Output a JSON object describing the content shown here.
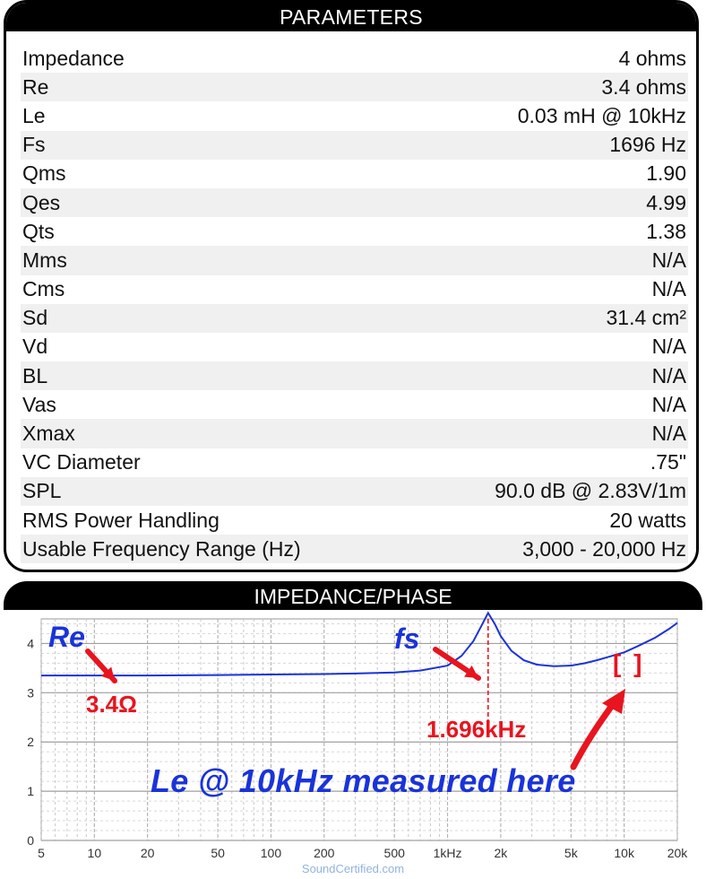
{
  "parameters": {
    "title": "PARAMETERS",
    "rows": [
      {
        "label": "Impedance",
        "value": "4 ohms"
      },
      {
        "label": "Re",
        "value": "3.4 ohms"
      },
      {
        "label": "Le",
        "value": "0.03 mH @ 10kHz"
      },
      {
        "label": "Fs",
        "value": "1696 Hz"
      },
      {
        "label": "Qms",
        "value": "1.90"
      },
      {
        "label": "Qes",
        "value": "4.99"
      },
      {
        "label": "Qts",
        "value": "1.38"
      },
      {
        "label": "Mms",
        "value": "N/A"
      },
      {
        "label": "Cms",
        "value": "N/A"
      },
      {
        "label": "Sd",
        "value": "31.4 cm²"
      },
      {
        "label": "Vd",
        "value": "N/A"
      },
      {
        "label": "BL",
        "value": "N/A"
      },
      {
        "label": "Vas",
        "value": "N/A"
      },
      {
        "label": "Xmax",
        "value": "N/A"
      },
      {
        "label": "VC Diameter",
        "value": ".75\""
      },
      {
        "label": "SPL",
        "value": "90.0 dB @ 2.83V/1m"
      },
      {
        "label": "RMS Power Handling",
        "value": "20 watts"
      },
      {
        "label": "Usable Frequency Range (Hz)",
        "value": "3,000 - 20,000 Hz"
      }
    ]
  },
  "impedance": {
    "title": "IMPEDANCE/PHASE",
    "annotations": {
      "re": "Re",
      "re_value": "3.4Ω",
      "fs": "fs",
      "fs_value": "1.696kHz",
      "le_note": "Le @ 10kHz measured here",
      "le_marker": "[ ]"
    }
  },
  "chart_data": {
    "type": "line",
    "x_scale": "log",
    "xlim": [
      5,
      20000
    ],
    "ylim": [
      0,
      4.5
    ],
    "x_ticks": [
      {
        "value": 5,
        "label": "5"
      },
      {
        "value": 10,
        "label": "10"
      },
      {
        "value": 20,
        "label": "20"
      },
      {
        "value": 50,
        "label": "50"
      },
      {
        "value": 100,
        "label": "100"
      },
      {
        "value": 200,
        "label": "200"
      },
      {
        "value": 500,
        "label": "500"
      },
      {
        "value": 1000,
        "label": "1kHz"
      },
      {
        "value": 2000,
        "label": "2k"
      },
      {
        "value": 5000,
        "label": "5k"
      },
      {
        "value": 10000,
        "label": "10k"
      },
      {
        "value": 20000,
        "label": "20k"
      }
    ],
    "y_ticks": [
      0,
      1,
      2,
      3,
      4
    ],
    "grid": true,
    "series": [
      {
        "color": "#1a33d9",
        "x": [
          5,
          10,
          20,
          50,
          100,
          200,
          300,
          500,
          700,
          1000,
          1200,
          1400,
          1550,
          1696,
          1850,
          2000,
          2300,
          2700,
          3200,
          4000,
          5000,
          6000,
          7000,
          8000,
          10000,
          12000,
          15000,
          18000,
          20000
        ],
        "y": [
          3.35,
          3.35,
          3.35,
          3.36,
          3.37,
          3.38,
          3.39,
          3.41,
          3.45,
          3.55,
          3.75,
          4.05,
          4.35,
          4.62,
          4.4,
          4.15,
          3.85,
          3.66,
          3.57,
          3.54,
          3.55,
          3.6,
          3.66,
          3.72,
          3.82,
          3.95,
          4.12,
          4.3,
          4.42
        ]
      }
    ],
    "markers": [
      {
        "x": 1696,
        "style": "dashed",
        "color": "#e8141e"
      }
    ]
  },
  "footer": "SoundCertified.com"
}
